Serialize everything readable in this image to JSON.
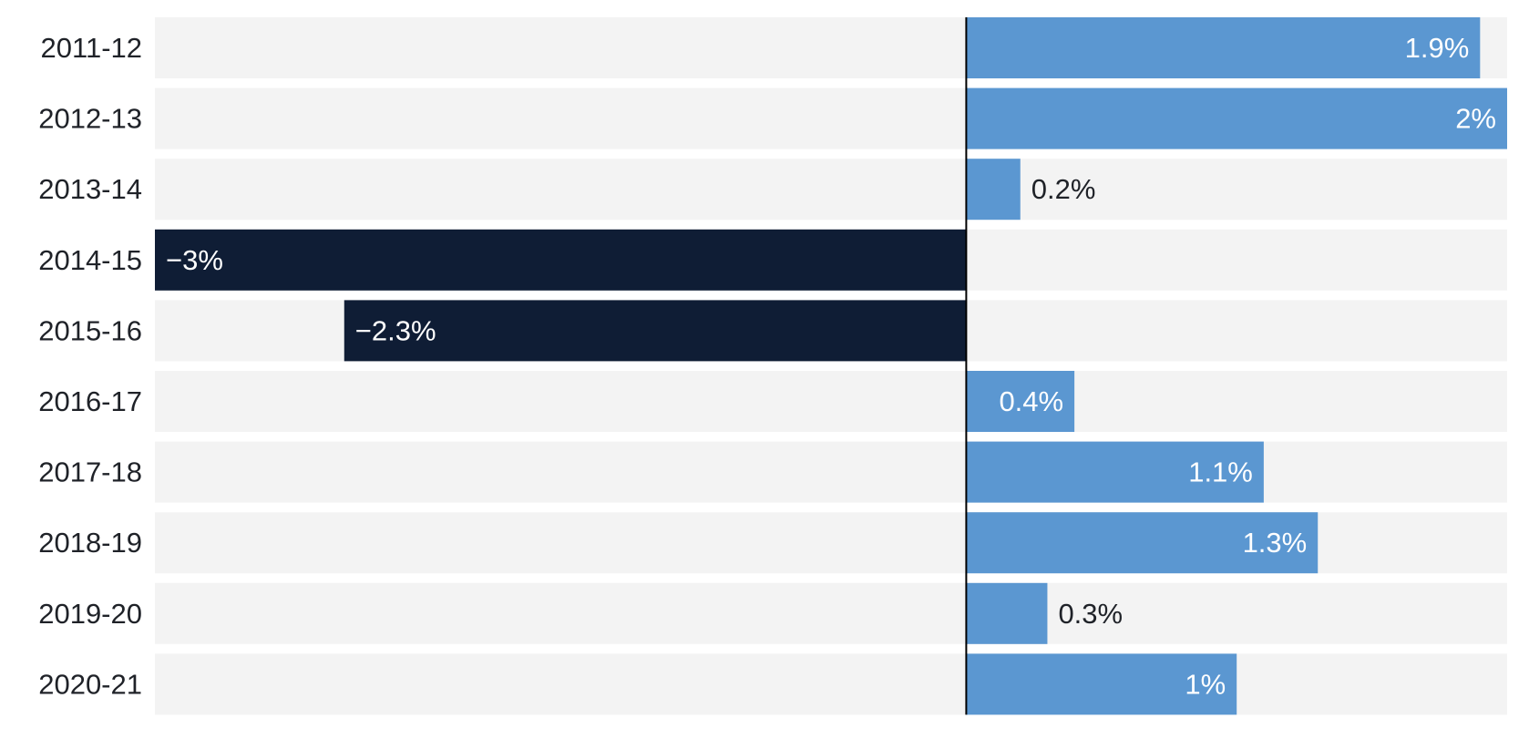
{
  "chart_data": {
    "type": "bar",
    "orientation": "horizontal",
    "categories": [
      "2011-12",
      "2012-13",
      "2013-14",
      "2014-15",
      "2015-16",
      "2016-17",
      "2017-18",
      "2018-19",
      "2019-20",
      "2020-21"
    ],
    "values": [
      1.9,
      2,
      0.2,
      -3,
      -2.3,
      0.4,
      1.1,
      1.3,
      0.3,
      1
    ],
    "value_labels": [
      "1.9%",
      "2%",
      "0.2%",
      "−3%",
      "−2.3%",
      "0.4%",
      "1.1%",
      "1.3%",
      "0.3%",
      "1%"
    ],
    "xlim": [
      -3,
      2
    ],
    "title": "",
    "xlabel": "",
    "ylabel": "",
    "colors": {
      "positive": "#5b97d1",
      "negative": "#0f1d35",
      "track": "#f3f3f3",
      "zero_line": "#000000",
      "label_inside": "#ffffff",
      "label_outside": "#1f2228"
    }
  }
}
